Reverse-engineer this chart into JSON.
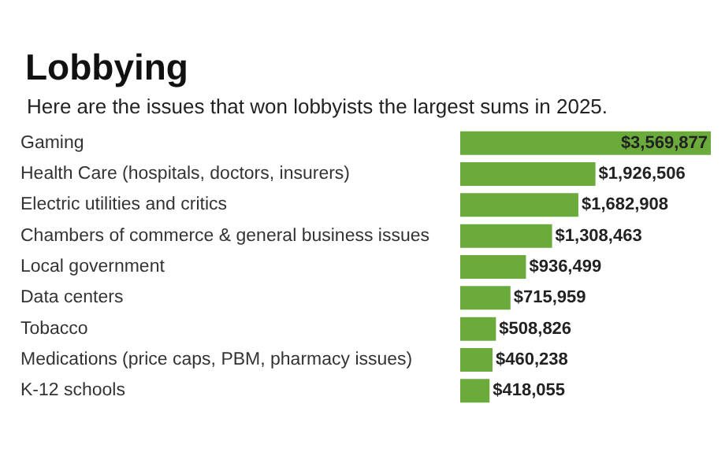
{
  "chart_data": {
    "type": "bar",
    "orientation": "horizontal",
    "title": "Lobbying",
    "subtitle": "Here are the issues that won lobbyists the largest sums in 2025.",
    "categories": [
      "Gaming",
      "Health Care (hospitals, doctors, insurers)",
      "Electric utilities and critics",
      "Chambers of commerce & general business issues",
      "Local government",
      "Data centers",
      "Tobacco",
      "Medications (price caps, PBM, pharmacy issues)",
      "K-12 schools"
    ],
    "values": [
      3569877,
      1926506,
      1682908,
      1308463,
      936499,
      715959,
      508826,
      460238,
      418055
    ],
    "value_labels": [
      "$3,569,877",
      "$1,926,506",
      "$1,682,908",
      "$1,308,463",
      "$936,499",
      "$715,959",
      "$508,826",
      "$460,238",
      "$418,055"
    ],
    "color": "#6aab3b"
  }
}
